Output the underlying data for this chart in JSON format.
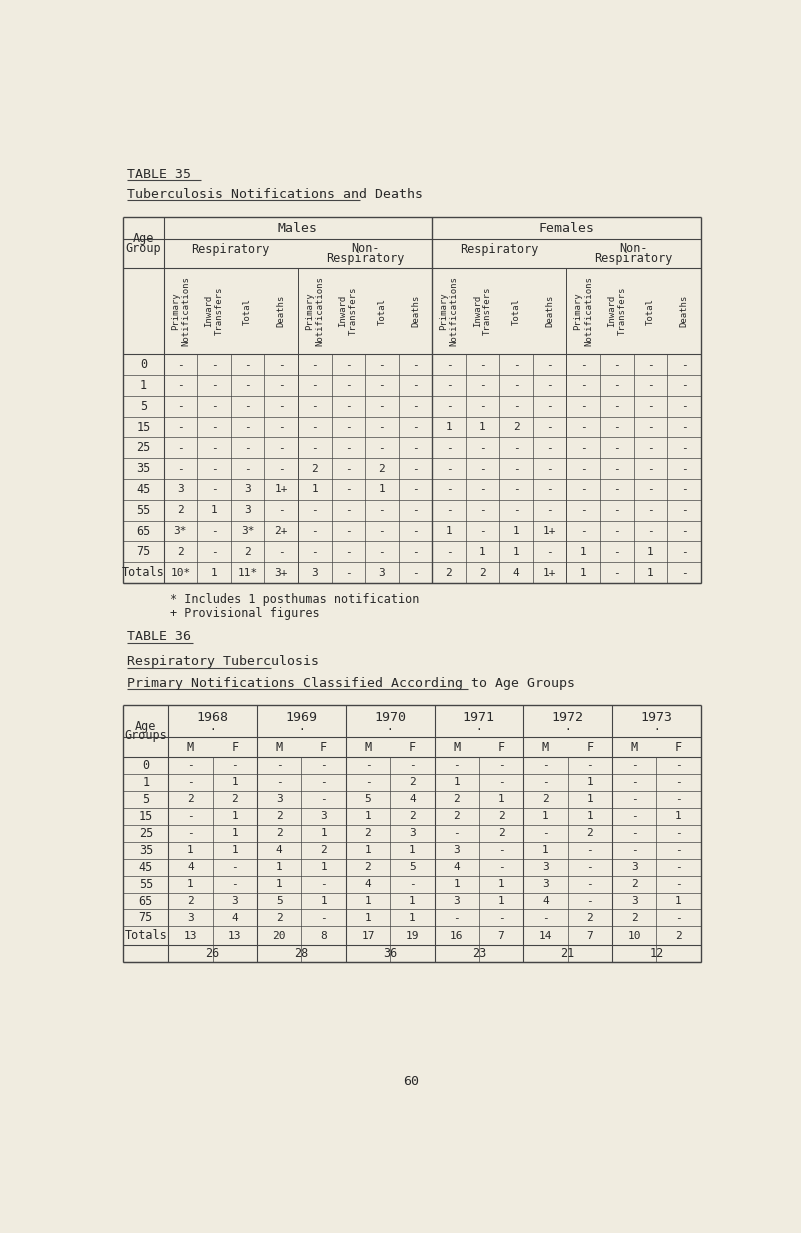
{
  "bg_color": "#f0ece0",
  "text_color": "#2a2a2a",
  "page_title": "TABLE 35",
  "page_subtitle": "Tuberculosis Notifications and Deaths",
  "table1_note1": "* Includes 1 posthumas notification",
  "table1_note2": "+ Provisional figures",
  "table2_title": "TABLE 36",
  "table2_subtitle": "Respiratory Tuberculosis",
  "table2_subtitle2": "Primary Notifications Classified According to Age Groups",
  "page_number": "60",
  "table1_ages": [
    "0",
    "1",
    "5",
    "15",
    "25",
    "35",
    "45",
    "55",
    "65",
    "75",
    "Totals"
  ],
  "table1_data": [
    [
      "-",
      "-",
      "-",
      "-",
      "-",
      "-",
      "-",
      "-",
      "-",
      "-",
      "-",
      "-",
      "-",
      "-",
      "-",
      "-"
    ],
    [
      "-",
      "-",
      "-",
      "-",
      "-",
      "-",
      "-",
      "-",
      "-",
      "-",
      "-",
      "-",
      "-",
      "-",
      "-",
      "-"
    ],
    [
      "-",
      "-",
      "-",
      "-",
      "-",
      "-",
      "-",
      "-",
      "-",
      "-",
      "-",
      "-",
      "-",
      "-",
      "-",
      "-"
    ],
    [
      "-",
      "-",
      "-",
      "-",
      "-",
      "-",
      "-",
      "-",
      "1",
      "1",
      "2",
      "-",
      "-",
      "-",
      "-",
      "-"
    ],
    [
      "-",
      "-",
      "-",
      "-",
      "-",
      "-",
      "-",
      "-",
      "-",
      "-",
      "-",
      "-",
      "-",
      "-",
      "-",
      "-"
    ],
    [
      "-",
      "-",
      "-",
      "-",
      "2",
      "-",
      "2",
      "-",
      "-",
      "-",
      "-",
      "-",
      "-",
      "-",
      "-",
      "-"
    ],
    [
      "3",
      "-",
      "3",
      "1+",
      "1",
      "-",
      "1",
      "-",
      "-",
      "-",
      "-",
      "-",
      "-",
      "-",
      "-",
      "-"
    ],
    [
      "2",
      "1",
      "3",
      "-",
      "-",
      "-",
      "-",
      "-",
      "-",
      "-",
      "-",
      "-",
      "-",
      "-",
      "-",
      "-"
    ],
    [
      "3*",
      "-",
      "3*",
      "2+",
      "-",
      "-",
      "-",
      "-",
      "1",
      "-",
      "1",
      "1+",
      "-",
      "-",
      "-",
      "-"
    ],
    [
      "2",
      "-",
      "2",
      "-",
      "-",
      "-",
      "-",
      "-",
      "-",
      "1",
      "1",
      "-",
      "1",
      "-",
      "1",
      "-"
    ],
    [
      "10*",
      "1",
      "11*",
      "3+",
      "3",
      "-",
      "3",
      "-",
      "2",
      "2",
      "4",
      "1+",
      "1",
      "-",
      "1",
      "-"
    ]
  ],
  "table2_ages": [
    "0",
    "1",
    "5",
    "15",
    "25",
    "35",
    "45",
    "55",
    "65",
    "75"
  ],
  "table2_years": [
    "1968",
    "1969",
    "1970",
    "1971",
    "1972",
    "1973"
  ],
  "table2_data": [
    [
      "-",
      "-",
      "-",
      "-",
      "-",
      "-",
      "-",
      "-",
      "-",
      "-",
      "-",
      "-"
    ],
    [
      "-",
      "1",
      "-",
      "-",
      "-",
      "2",
      "1",
      "-",
      "-",
      "1",
      "-",
      "-"
    ],
    [
      "2",
      "2",
      "3",
      "-",
      "5",
      "4",
      "2",
      "1",
      "2",
      "1",
      "-",
      "-"
    ],
    [
      "-",
      "1",
      "2",
      "3",
      "1",
      "2",
      "2",
      "2",
      "1",
      "1",
      "-",
      "1"
    ],
    [
      "-",
      "1",
      "2",
      "1",
      "2",
      "3",
      "-",
      "2",
      "-",
      "2",
      "-",
      "-"
    ],
    [
      "1",
      "1",
      "4",
      "2",
      "1",
      "1",
      "3",
      "-",
      "1",
      "-",
      "-",
      "-"
    ],
    [
      "4",
      "-",
      "1",
      "1",
      "2",
      "5",
      "4",
      "-",
      "3",
      "-",
      "3",
      "-"
    ],
    [
      "1",
      "-",
      "1",
      "-",
      "4",
      "-",
      "1",
      "1",
      "3",
      "-",
      "2",
      "-"
    ],
    [
      "2",
      "3",
      "5",
      "1",
      "1",
      "1",
      "3",
      "1",
      "4",
      "-",
      "3",
      "1"
    ],
    [
      "3",
      "4",
      "2",
      "-",
      "1",
      "1",
      "-",
      "-",
      "-",
      "2",
      "2",
      "-"
    ]
  ],
  "table2_totals": [
    "13",
    "13",
    "20",
    "8",
    "17",
    "19",
    "16",
    "7",
    "14",
    "7",
    "10",
    "2"
  ],
  "table2_combined": [
    "26",
    "28",
    "36",
    "23",
    "21",
    "12"
  ]
}
